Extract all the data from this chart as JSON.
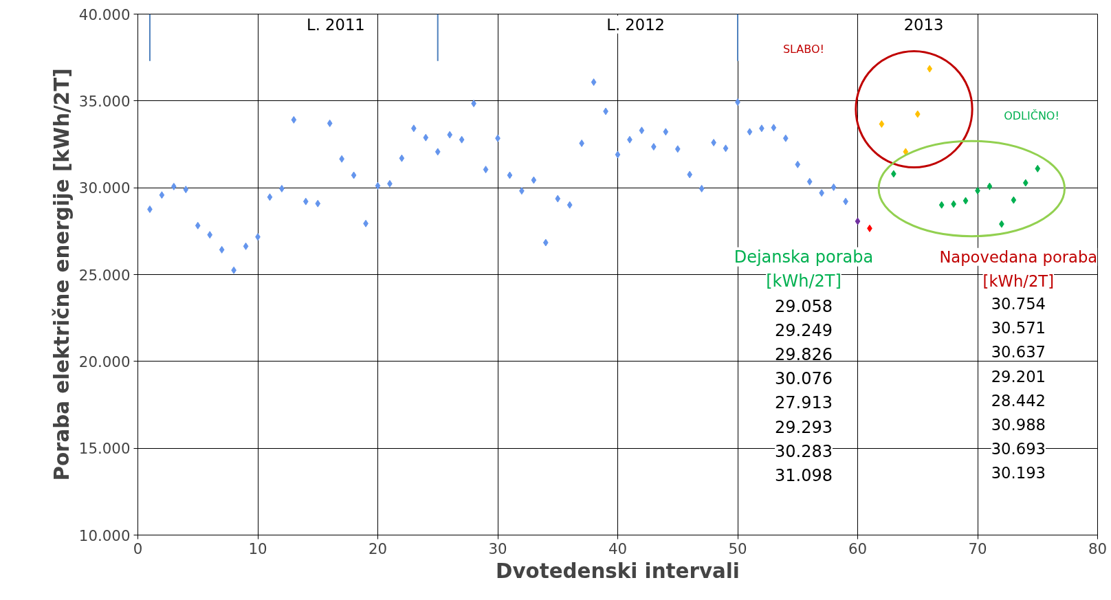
{
  "chart_data": {
    "type": "scatter",
    "xlabel": "Dvotedenski intervali",
    "ylabel": "Poraba električne energije [kWh/2T]",
    "xlim": [
      0,
      80
    ],
    "xticks": [
      0,
      10,
      20,
      30,
      40,
      50,
      60,
      70,
      80
    ],
    "ylim": [
      10000,
      40000
    ],
    "yticks": [
      {
        "value": 10000,
        "label": "10.000"
      },
      {
        "value": 15000,
        "label": "15.000"
      },
      {
        "value": 20000,
        "label": "20.000"
      },
      {
        "value": 25000,
        "label": "25.000"
      },
      {
        "value": 30000,
        "label": "30.000"
      },
      {
        "value": 35000,
        "label": "35.000"
      },
      {
        "value": 40000,
        "label": "40.000"
      }
    ],
    "grid": true,
    "marker": "diamond",
    "series": [
      {
        "color": "#6495ed",
        "x": [
          1,
          2,
          3,
          4,
          5,
          6,
          7,
          8,
          9,
          10,
          11,
          12,
          13,
          14,
          15,
          16,
          17,
          18,
          19,
          20,
          21,
          22,
          23,
          24,
          25,
          26,
          27,
          28,
          29,
          30,
          31,
          32,
          33,
          34,
          35,
          36,
          37,
          38,
          39,
          40,
          41,
          42,
          43,
          44,
          45,
          46,
          47,
          48,
          49,
          50,
          51,
          52,
          53,
          54,
          55,
          56,
          57,
          58,
          59
        ],
        "values": [
          28760,
          29580,
          30070,
          29900,
          27820,
          27290,
          26430,
          25250,
          26630,
          27170,
          29460,
          29950,
          33910,
          29210,
          29090,
          33710,
          31660,
          30720,
          27940,
          30110,
          30230,
          31700,
          33420,
          32890,
          32070,
          33050,
          32770,
          34850,
          31050,
          32850,
          30720,
          29820,
          30440,
          26840,
          29370,
          29010,
          32560,
          36080,
          34400,
          31910,
          32770,
          33300,
          32360,
          33220,
          32230,
          30760,
          29950,
          32600,
          32270,
          34930,
          33220,
          33420,
          33460,
          32850,
          31340,
          30350,
          29700,
          30030,
          29210
        ]
      },
      {
        "color": "#7030a0",
        "x": [
          60
        ],
        "values": [
          28070
        ]
      },
      {
        "color": "#ff0000",
        "x": [
          61
        ],
        "values": [
          27660
        ]
      },
      {
        "color": "#ffc000",
        "x": [
          62,
          64,
          65,
          66
        ],
        "values": [
          33670,
          32070,
          34240,
          36850
        ]
      },
      {
        "color": "#00b050",
        "x": [
          63,
          67,
          68,
          69,
          70,
          71,
          72,
          73,
          74,
          75
        ],
        "values": [
          30800,
          29010,
          29060,
          29250,
          29830,
          30080,
          27910,
          29290,
          30280,
          31100
        ]
      }
    ],
    "ref_lines": [
      {
        "axis": "x",
        "value": 1,
        "color": "#4f81bd"
      },
      {
        "axis": "x",
        "value": 25,
        "color": "#4f81bd"
      },
      {
        "axis": "x",
        "value": 50,
        "color": "#4f81bd"
      }
    ],
    "annotations": [
      "L. 2011",
      "L. 2012",
      "2013",
      "SLABO!",
      "ODLIČNO!",
      "Dejanska poraba",
      "[kWh/2T]",
      "29.058",
      "29.249",
      "29.826",
      "30.076",
      "27.913",
      "29.293",
      "30.283",
      "31.098",
      "Napovedana poraba",
      "[kWh/2T]",
      "30.754",
      "30.571",
      "30.637",
      "29.201",
      "28.442",
      "30.988",
      "30.693",
      "30.193"
    ]
  }
}
